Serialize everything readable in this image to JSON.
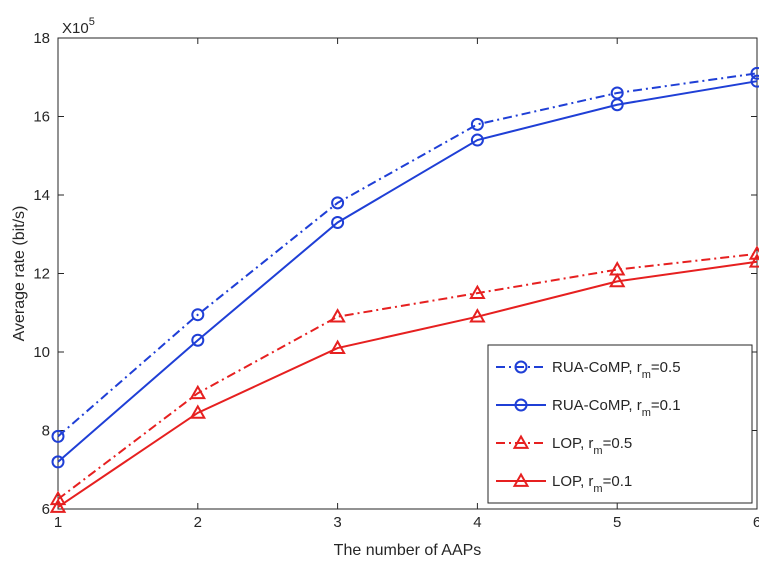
{
  "chart_data": {
    "type": "line",
    "title": "",
    "xlabel": "The number of AAPs",
    "ylabel": "Average rate (bit/s)",
    "y_multiplier_label": "X10",
    "y_multiplier_exponent": "5",
    "xlim": [
      1,
      6
    ],
    "ylim": [
      6,
      18
    ],
    "x_ticks": [
      1,
      2,
      3,
      4,
      5,
      6
    ],
    "y_ticks": [
      6,
      8,
      10,
      12,
      14,
      16,
      18
    ],
    "grid": false,
    "legend_position": "bottom-right",
    "x": [
      1,
      2,
      3,
      4,
      5,
      6
    ],
    "series": [
      {
        "name": "RUA-CoMP, r",
        "sub": "m",
        "suffix": "=0.5",
        "color": "#1f3fd6",
        "dash": "dashdot",
        "marker": "circle",
        "values": [
          7.85,
          10.95,
          13.8,
          15.8,
          16.6,
          17.1
        ]
      },
      {
        "name": "RUA-CoMP, r",
        "sub": "m",
        "suffix": "=0.1",
        "color": "#1f3fd6",
        "dash": "solid",
        "marker": "circle",
        "values": [
          7.2,
          10.3,
          13.3,
          15.4,
          16.3,
          16.9
        ]
      },
      {
        "name": "LOP, r",
        "sub": "m",
        "suffix": "=0.5",
        "color": "#e62020",
        "dash": "dashdot",
        "marker": "triangle",
        "values": [
          6.25,
          8.95,
          10.9,
          11.5,
          12.1,
          12.5
        ]
      },
      {
        "name": "LOP, r",
        "sub": "m",
        "suffix": "=0.1",
        "color": "#e62020",
        "dash": "solid",
        "marker": "triangle",
        "values": [
          6.05,
          8.45,
          10.1,
          10.9,
          11.8,
          12.3
        ]
      }
    ]
  }
}
